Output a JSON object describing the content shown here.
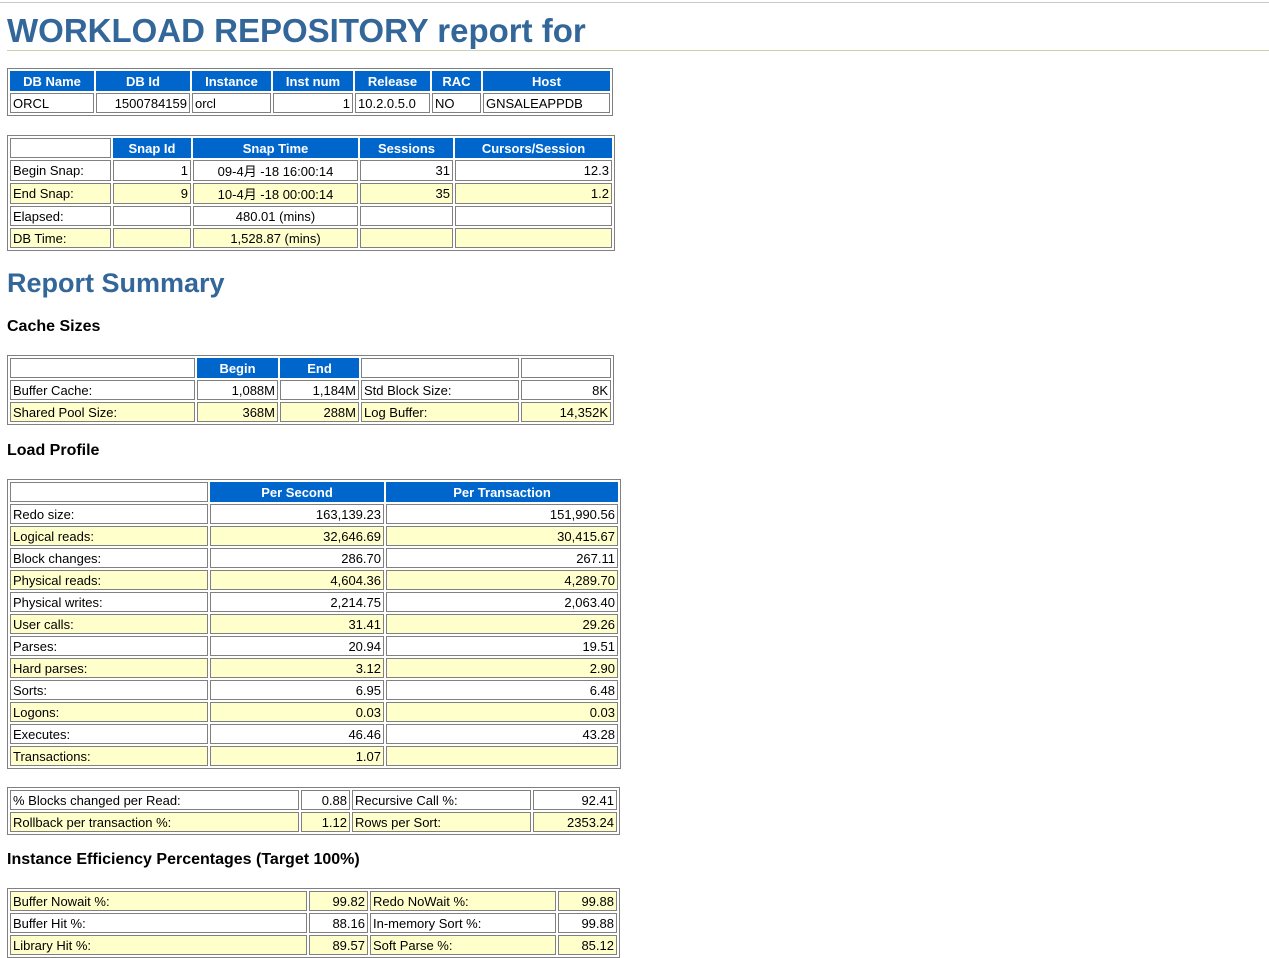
{
  "report_title": "WORKLOAD REPOSITORY report for",
  "db_info": {
    "headers": [
      "DB Name",
      "DB Id",
      "Instance",
      "Inst num",
      "Release",
      "RAC",
      "Host"
    ],
    "row": [
      "ORCL",
      "1500784159",
      "orcl",
      "1",
      "10.2.0.5.0",
      "NO",
      "GNSALEAPPDB"
    ]
  },
  "snapshots": {
    "headers": [
      "",
      "Snap Id",
      "Snap Time",
      "Sessions",
      "Cursors/Session"
    ],
    "rows": [
      [
        "Begin Snap:",
        "1",
        "09-4月 -18 16:00:14",
        "31",
        "12.3"
      ],
      [
        "End Snap:",
        "9",
        "10-4月 -18 00:00:14",
        "35",
        "1.2"
      ],
      [
        "Elapsed:",
        "",
        "480.01 (mins)",
        "",
        ""
      ],
      [
        "DB Time:",
        "",
        "1,528.87 (mins)",
        "",
        ""
      ]
    ]
  },
  "report_summary_title": "Report Summary",
  "cache_sizes": {
    "title": "Cache Sizes",
    "headers": [
      "",
      "Begin",
      "End",
      "",
      ""
    ],
    "rows": [
      [
        "Buffer Cache:",
        "1,088M",
        "1,184M",
        "Std Block Size:",
        "8K"
      ],
      [
        "Shared Pool Size:",
        "368M",
        "288M",
        "Log Buffer:",
        "14,352K"
      ]
    ]
  },
  "load_profile": {
    "title": "Load Profile",
    "headers": [
      "",
      "Per Second",
      "Per Transaction"
    ],
    "rows": [
      [
        "Redo size:",
        "163,139.23",
        "151,990.56"
      ],
      [
        "Logical reads:",
        "32,646.69",
        "30,415.67"
      ],
      [
        "Block changes:",
        "286.70",
        "267.11"
      ],
      [
        "Physical reads:",
        "4,604.36",
        "4,289.70"
      ],
      [
        "Physical writes:",
        "2,214.75",
        "2,063.40"
      ],
      [
        "User calls:",
        "31.41",
        "29.26"
      ],
      [
        "Parses:",
        "20.94",
        "19.51"
      ],
      [
        "Hard parses:",
        "3.12",
        "2.90"
      ],
      [
        "Sorts:",
        "6.95",
        "6.48"
      ],
      [
        "Logons:",
        "0.03",
        "0.03"
      ],
      [
        "Executes:",
        "46.46",
        "43.28"
      ],
      [
        "Transactions:",
        "1.07",
        ""
      ]
    ]
  },
  "load_ratios": {
    "rows": [
      [
        "% Blocks changed per Read:",
        "0.88",
        "Recursive Call %:",
        "92.41"
      ],
      [
        "Rollback per transaction %:",
        "1.12",
        "Rows per Sort:",
        "2353.24"
      ]
    ]
  },
  "instance_efficiency": {
    "title": "Instance Efficiency Percentages (Target 100%)",
    "rows": [
      [
        "Buffer Nowait %:",
        "99.82",
        "Redo NoWait %:",
        "99.88"
      ],
      [
        "Buffer Hit %:",
        "88.16",
        "In-memory Sort %:",
        "99.88"
      ],
      [
        "Library Hit %:",
        "89.57",
        "Soft Parse %:",
        "85.12"
      ]
    ]
  }
}
